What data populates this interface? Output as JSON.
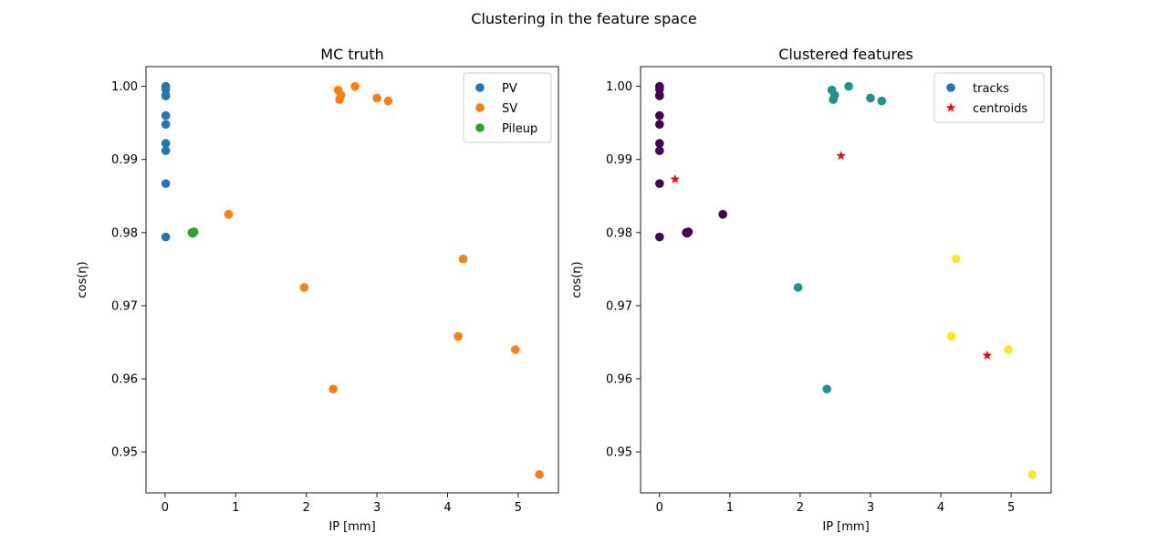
{
  "figure": {
    "suptitle": "Clustering in the feature space"
  },
  "chart_data": [
    {
      "type": "scatter",
      "title": "MC truth",
      "xlabel": "IP [mm]",
      "ylabel": "cos(η)",
      "xlim": [
        -0.27,
        5.57
      ],
      "ylim": [
        0.9444,
        1.0027
      ],
      "xticks": [
        0,
        1,
        2,
        3,
        4,
        5
      ],
      "yticks": [
        0.95,
        0.96,
        0.97,
        0.98,
        0.99,
        1.0
      ],
      "ytick_labels": [
        "0.95",
        "0.96",
        "0.97",
        "0.98",
        "0.99",
        "1.00"
      ],
      "legend": "top-right",
      "series": [
        {
          "name": "PV",
          "color": "#1f77b4",
          "marker": "circle",
          "points": [
            [
              0.01,
              1.0
            ],
            [
              0.01,
              0.9996
            ],
            [
              0.01,
              0.9988
            ],
            [
              0.01,
              0.9987
            ],
            [
              0.01,
              0.996
            ],
            [
              0.01,
              0.9948
            ],
            [
              0.01,
              0.9922
            ],
            [
              0.01,
              0.9912
            ],
            [
              0.01,
              0.9867
            ],
            [
              0.01,
              0.9794
            ]
          ]
        },
        {
          "name": "SV",
          "color": "#ff7f0e",
          "marker": "circle",
          "points": [
            [
              2.69,
              1.0
            ],
            [
              2.45,
              0.9995
            ],
            [
              2.49,
              0.9988
            ],
            [
              2.47,
              0.9982
            ],
            [
              3.0,
              0.9984
            ],
            [
              3.16,
              0.998
            ],
            [
              0.9,
              0.9825
            ],
            [
              4.22,
              0.9764
            ],
            [
              1.97,
              0.9725
            ],
            [
              4.15,
              0.9658
            ],
            [
              4.96,
              0.964
            ],
            [
              2.38,
              0.9586
            ],
            [
              5.3,
              0.9469
            ]
          ]
        },
        {
          "name": "Pileup",
          "color": "#2ca02c",
          "marker": "circle",
          "points": [
            [
              0.38,
              0.98
            ],
            [
              0.4,
              0.98
            ],
            [
              0.41,
              0.9801
            ],
            [
              0.39,
              0.9799
            ]
          ]
        }
      ]
    },
    {
      "type": "scatter",
      "title": "Clustered features",
      "xlabel": "IP [mm]",
      "ylabel": "cos(η)",
      "xlim": [
        -0.27,
        5.57
      ],
      "ylim": [
        0.9444,
        1.0027
      ],
      "xticks": [
        0,
        1,
        2,
        3,
        4,
        5
      ],
      "yticks": [
        0.95,
        0.96,
        0.97,
        0.98,
        0.99,
        1.0
      ],
      "ytick_labels": [
        "0.95",
        "0.96",
        "0.97",
        "0.98",
        "0.99",
        "1.00"
      ],
      "legend": "top-right",
      "series": [
        {
          "name": "tracks",
          "color": "#1f77b4",
          "legend_color": "#1f77b4",
          "marker": "circle",
          "points": [
            [
              0.0,
              1.0,
              "#440154"
            ],
            [
              0.0,
              0.9996,
              "#440154"
            ],
            [
              0.0,
              0.9988,
              "#440154"
            ],
            [
              0.0,
              0.9987,
              "#440154"
            ],
            [
              0.0,
              0.996,
              "#440154"
            ],
            [
              0.0,
              0.9948,
              "#440154"
            ],
            [
              0.0,
              0.9922,
              "#440154"
            ],
            [
              0.0,
              0.9912,
              "#440154"
            ],
            [
              0.0,
              0.9867,
              "#440154"
            ],
            [
              0.0,
              0.9794,
              "#440154"
            ],
            [
              0.38,
              0.98,
              "#440154"
            ],
            [
              0.4,
              0.98,
              "#440154"
            ],
            [
              0.41,
              0.9801,
              "#440154"
            ],
            [
              0.39,
              0.9799,
              "#440154"
            ],
            [
              0.9,
              0.9825,
              "#440154"
            ],
            [
              2.69,
              1.0,
              "#21918c"
            ],
            [
              2.45,
              0.9995,
              "#21918c"
            ],
            [
              2.49,
              0.9988,
              "#21918c"
            ],
            [
              2.47,
              0.9982,
              "#21918c"
            ],
            [
              3.0,
              0.9984,
              "#21918c"
            ],
            [
              3.16,
              0.998,
              "#21918c"
            ],
            [
              1.97,
              0.9725,
              "#21918c"
            ],
            [
              2.38,
              0.9586,
              "#21918c"
            ],
            [
              4.22,
              0.9764,
              "#fde725"
            ],
            [
              4.15,
              0.9658,
              "#fde725"
            ],
            [
              4.96,
              0.964,
              "#fde725"
            ],
            [
              5.3,
              0.9469,
              "#fde725"
            ]
          ]
        },
        {
          "name": "centroids",
          "color": "#ff0000",
          "marker": "star",
          "points": [
            [
              0.22,
              0.9873
            ],
            [
              2.58,
              0.9905
            ],
            [
              4.66,
              0.9632
            ]
          ]
        }
      ]
    }
  ]
}
